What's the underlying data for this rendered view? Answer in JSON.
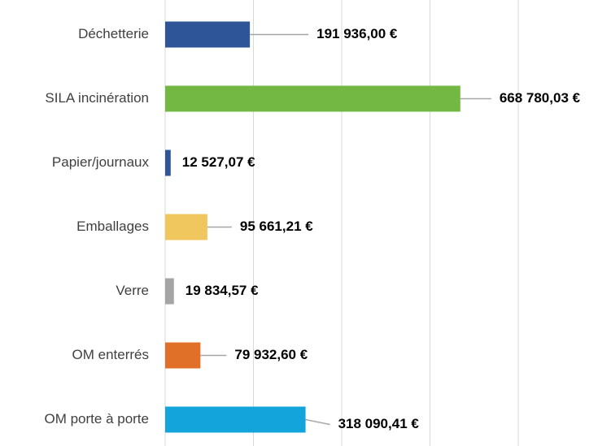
{
  "chart_data": {
    "type": "bar",
    "orientation": "horizontal",
    "categories": [
      "Déchetterie",
      "SILA incinération",
      "Papier/journaux",
      "Emballages",
      "Verre",
      "OM enterrés",
      "OM porte à porte"
    ],
    "values": [
      191936.0,
      668780.03,
      12527.07,
      95661.21,
      19834.57,
      79932.6,
      318090.41
    ],
    "value_labels": [
      "191 936,00 €",
      "668 780,03 €",
      "12 527,07 €",
      "95 661,21 €",
      "19 834,57 €",
      "79 932,60 €",
      "318 090,41 €"
    ],
    "colors": [
      "#2e5597",
      "#72b843",
      "#2e5597",
      "#f0c75e",
      "#a5a5a5",
      "#e07028",
      "#13a4dc"
    ],
    "xlim": [
      0,
      800000
    ],
    "xticks": [
      0,
      200000,
      400000,
      600000,
      800000
    ],
    "grid": true
  }
}
